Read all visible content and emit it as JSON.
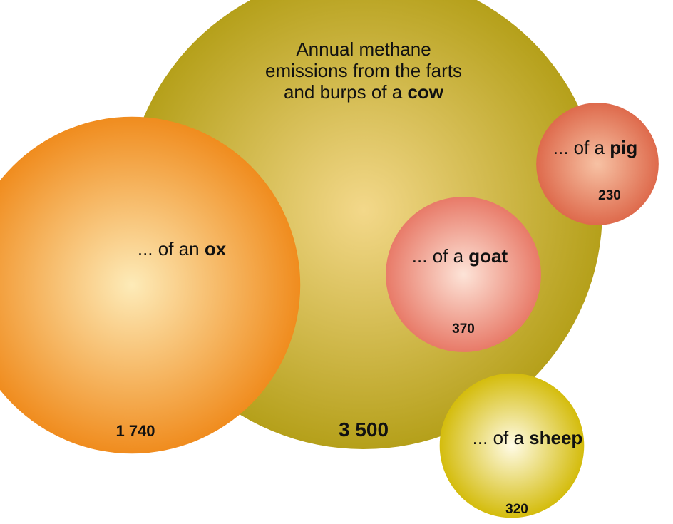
{
  "chart_data": {
    "type": "bubble",
    "series": [
      {
        "prefix": "Annual methane emissions from the farts and burps of a",
        "name": "cow",
        "values": [
          3500
        ],
        "value_labels": [
          "3 500"
        ],
        "color": "#b5a01a"
      },
      {
        "prefix": "... of an",
        "name": "ox",
        "values": [
          1740
        ],
        "value_labels": [
          "1 740"
        ],
        "color": "#f08c1e"
      },
      {
        "prefix": "... of a",
        "name": "goat",
        "values": [
          370
        ],
        "color": "#e87a68"
      },
      {
        "prefix": "... of a",
        "name": "pig",
        "values": [
          230
        ],
        "color": "#de6a4c"
      },
      {
        "prefix": "... of a",
        "name": "sheep",
        "values": [
          320
        ],
        "color": "#d4bc0c"
      }
    ]
  }
}
